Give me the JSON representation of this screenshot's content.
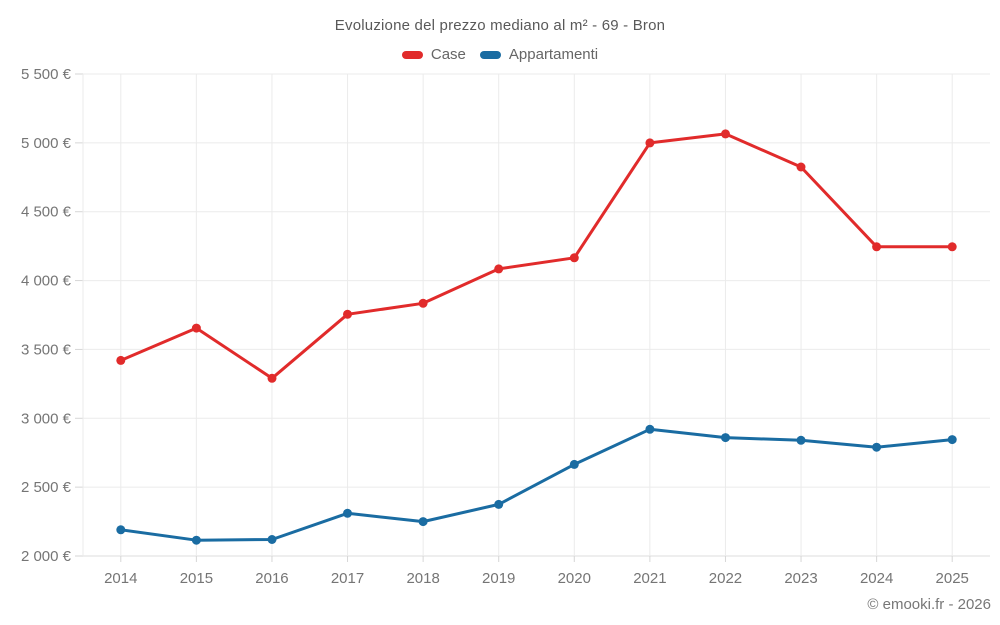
{
  "watermark": "© emooki.fr - 2026",
  "chart_data": {
    "type": "line",
    "title": "Evoluzione del prezzo mediano al m² - 69 - Bron",
    "categories": [
      "2014",
      "2015",
      "2016",
      "2017",
      "2018",
      "2019",
      "2020",
      "2021",
      "2022",
      "2023",
      "2024",
      "2025"
    ],
    "series": [
      {
        "name": "Case",
        "color": "#e12b2b",
        "values": [
          3420,
          3655,
          3290,
          3755,
          3835,
          4085,
          4165,
          5000,
          5065,
          4825,
          4245,
          4245
        ]
      },
      {
        "name": "Appartamenti",
        "color": "#1a6ca2",
        "values": [
          2190,
          2115,
          2120,
          2310,
          2250,
          2375,
          2665,
          2920,
          2860,
          2840,
          2790,
          2845
        ]
      }
    ],
    "ylim": [
      2000,
      5500
    ],
    "ytick_step": 500,
    "ytick_labels": [
      "2 000 €",
      "2 500 €",
      "3 000 €",
      "3 500 €",
      "4 000 €",
      "4 500 €",
      "5 000 €",
      "5 500 €"
    ],
    "currency_suffix": "€",
    "grid": true,
    "legend_position": "top",
    "marker": "circle"
  },
  "style_colors": {
    "gridline": "#ebebeb",
    "axis_line": "#dcdcdc",
    "tick": "#d6d6d6",
    "axis_text": "#757575",
    "title_text": "#595959",
    "legend_text": "#666666",
    "background": "#ffffff"
  }
}
